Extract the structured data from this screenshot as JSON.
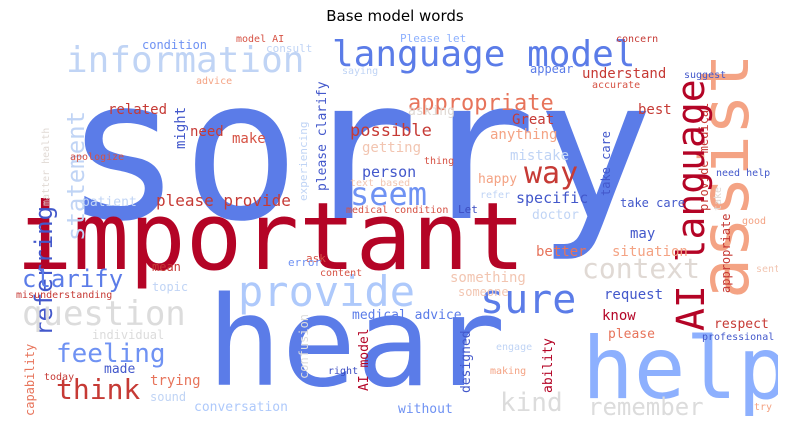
{
  "title": "Base model words",
  "words": {
    "sorry": "sorry",
    "important": "important",
    "hear": "hear",
    "help": "help",
    "assist": "assist",
    "language_model": "language model",
    "information": "information",
    "provide": "provide",
    "question": "question",
    "ai_language": "AI language",
    "sure": "sure",
    "seem": "seem",
    "context": "context",
    "way": "way",
    "feeling": "feeling",
    "think": "think",
    "clarify": "clarify",
    "statement": "statement",
    "referring": "referring",
    "kind": "kind",
    "remember": "remember",
    "please_provide": "please provide",
    "possible": "possible",
    "understand": "understand",
    "appropriate": "appropriate",
    "respect": "respect",
    "specific": "specific",
    "person": "person",
    "mistake": "mistake",
    "great": "Great",
    "anything": "anything",
    "getting": "getting",
    "asking": "asking",
    "make": "make",
    "need": "need",
    "related": "related",
    "might": "might",
    "please_clarify": "please clarify",
    "experiencing": "experiencing",
    "consult": "consult",
    "condition": "condition",
    "model_ai": "model AI",
    "please_let": "Please let",
    "concern": "concern",
    "suggest": "suggest",
    "appear": "appear",
    "accurate": "accurate",
    "advice": "advice",
    "saying": "saying",
    "matter_health": "matter health",
    "apologize": "apologize",
    "best": "best",
    "provide_medical": "provide medical",
    "take": "take",
    "need_help": "need help",
    "good": "good",
    "sentence": "sentence",
    "professional": "professional",
    "please": "please",
    "know": "know",
    "may": "may",
    "situation": "situation",
    "request": "request",
    "take_care": "take care",
    "doctor": "doctor",
    "something": "something",
    "someone": "someone",
    "better": "better",
    "happy": "happy",
    "let": "Let",
    "refer": "refer",
    "text_based": "text based",
    "thing": "thing",
    "medical_condition": "medical condition",
    "patient": "patient",
    "ask": "ask",
    "error": "error",
    "content": "content",
    "mean": "mean",
    "topic": "topic",
    "misunderstanding": "misunderstanding",
    "capability": "capability",
    "individual": "individual",
    "confusion": "confusion",
    "medical_advice": "medical advice",
    "made": "made",
    "trying": "trying",
    "sound": "sound",
    "conversation": "conversation",
    "ai_model": "AI model",
    "designed": "designed",
    "ability": "ability",
    "without": "without",
    "right": "right",
    "making": "making",
    "engage": "engage",
    "today": "today",
    "try": "try"
  },
  "colors": {
    "c1": "#b40426",
    "c2": "#c63a35",
    "c3": "#d65244",
    "c4": "#e7745b",
    "c5": "#f4a384",
    "c6": "#f2c5b1",
    "c7": "#e0d9d4",
    "c8": "#dcdcdc",
    "c9": "#c0d4f5",
    "c10": "#aec9fb",
    "c11": "#8db0fe",
    "c12": "#6f92f3",
    "c13": "#5b7ce8",
    "c14": "#4358cb",
    "c15": "#3b4cc0"
  }
}
